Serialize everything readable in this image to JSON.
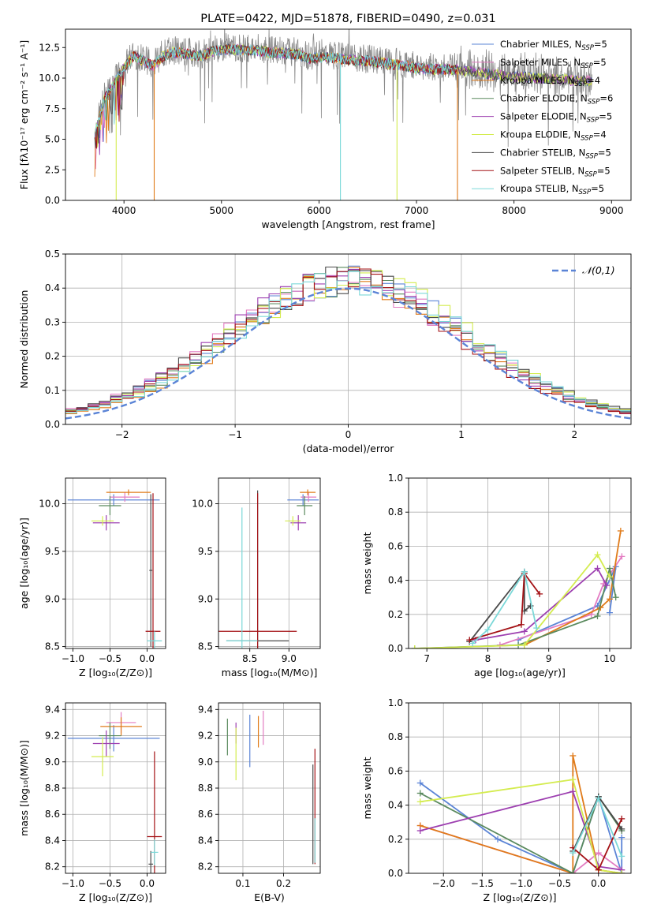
{
  "colors": {
    "chabrier_miles": "#5b84d6",
    "salpeter_miles": "#e37cc2",
    "kroupa_miles": "#e07b1a",
    "chabrier_elodie": "#5a8a5e",
    "salpeter_elodie": "#9d3fb0",
    "kroupa_elodie": "#d4ec4f",
    "chabrier_stelib": "#4a4a4a",
    "salpeter_stelib": "#a41216",
    "kroupa_stelib": "#7bd8d8",
    "grid": "#b0b0b0",
    "observed": "#8a8a8a"
  },
  "chart_data": [
    {
      "id": "spectrum",
      "type": "line",
      "title": "PLATE=0422, MJD=51878, FIBERID=0490, z=0.031",
      "xlabel": "wavelength [Angstrom, rest frame]",
      "ylabel": "Flux [fλ10⁻¹⁷ erg cm⁻² s⁻¹ A⁻¹]",
      "xlim": [
        3400,
        9200
      ],
      "ylim": [
        0,
        14
      ],
      "x_ticks": [
        "4000",
        "5000",
        "6000",
        "7000",
        "8000",
        "9000"
      ],
      "y_ticks": [
        "0.0",
        "2.5",
        "5.0",
        "7.5",
        "10.0",
        "12.5"
      ],
      "grid": false,
      "legend_position": "top-right",
      "legend": [
        {
          "name": "Chabrier MILES, NSSP=5",
          "base": "Chabrier MILES, N",
          "sub": "SSP",
          "tail": "=5",
          "color": "chabrier_miles"
        },
        {
          "name": "Salpeter MILES, NSSP=5",
          "base": "Salpeter MILES, N",
          "sub": "SSP",
          "tail": "=5",
          "color": "salpeter_miles"
        },
        {
          "name": "Kroupa MILES, NSSP=4",
          "base": "Kroupa MILES, N",
          "sub": "SSP",
          "tail": "=4",
          "color": "kroupa_miles"
        },
        {
          "name": "Chabrier ELODIE, NSSP=6",
          "base": "Chabrier ELODIE, N",
          "sub": "SSP",
          "tail": "=6",
          "color": "chabrier_elodie"
        },
        {
          "name": "Salpeter ELODIE, NSSP=5",
          "base": "Salpeter ELODIE, N",
          "sub": "SSP",
          "tail": "=5",
          "color": "salpeter_elodie"
        },
        {
          "name": "Kroupa ELODIE, NSSP=4",
          "base": "Kroupa ELODIE, N",
          "sub": "SSP",
          "tail": "=4",
          "color": "kroupa_elodie"
        },
        {
          "name": "Chabrier STELIB, NSSP=5",
          "base": "Chabrier STELIB, N",
          "sub": "SSP",
          "tail": "=5",
          "color": "chabrier_stelib"
        },
        {
          "name": "Salpeter STELIB, NSSP=5",
          "base": "Salpeter STELIB, N",
          "sub": "SSP",
          "tail": "=5",
          "color": "salpeter_stelib"
        },
        {
          "name": "Kroupa STELIB, NSSP=5",
          "base": "Kroupa STELIB, N",
          "sub": "SSP",
          "tail": "=5",
          "color": "kroupa_stelib"
        }
      ],
      "continuum": [
        [
          3700,
          5.5
        ],
        [
          3800,
          8.5
        ],
        [
          3900,
          9.8
        ],
        [
          4000,
          11.0
        ],
        [
          4100,
          12.0
        ],
        [
          4200,
          11.6
        ],
        [
          4300,
          11.2
        ],
        [
          4400,
          12.0
        ],
        [
          4500,
          12.3
        ],
        [
          4600,
          12.2
        ],
        [
          4700,
          12.1
        ],
        [
          4800,
          12.0
        ],
        [
          4900,
          12.4
        ],
        [
          5000,
          12.5
        ],
        [
          5100,
          12.6
        ],
        [
          5200,
          12.5
        ],
        [
          5300,
          12.5
        ],
        [
          5400,
          12.4
        ],
        [
          5500,
          12.3
        ],
        [
          5600,
          12.3
        ],
        [
          5700,
          12.2
        ],
        [
          5800,
          12.1
        ],
        [
          5900,
          11.8
        ],
        [
          6000,
          11.9
        ],
        [
          6100,
          11.9
        ],
        [
          6200,
          11.8
        ],
        [
          6300,
          11.7
        ],
        [
          6400,
          11.6
        ],
        [
          6500,
          11.6
        ],
        [
          6600,
          11.5
        ],
        [
          6700,
          11.4
        ],
        [
          6800,
          11.3
        ],
        [
          6900,
          11.2
        ],
        [
          7000,
          11.0
        ],
        [
          7100,
          11.0
        ],
        [
          7200,
          10.9
        ],
        [
          7300,
          10.9
        ],
        [
          7400,
          10.9
        ],
        [
          7500,
          10.8
        ],
        [
          7600,
          10.7
        ],
        [
          7700,
          10.6
        ],
        [
          7800,
          10.5
        ],
        [
          7900,
          10.4
        ],
        [
          8000,
          10.3
        ],
        [
          8100,
          10.3
        ],
        [
          8200,
          10.2
        ],
        [
          8300,
          10.2
        ],
        [
          8400,
          10.1
        ],
        [
          8500,
          10.1
        ],
        [
          8600,
          10.0
        ],
        [
          8700,
          10.0
        ],
        [
          8800,
          10.0
        ]
      ],
      "model_dropouts": [
        {
          "x": 3920,
          "color": "kroupa_elodie"
        },
        {
          "x": 4310,
          "color": "kroupa_miles"
        },
        {
          "x": 6220,
          "color": "kroupa_stelib"
        },
        {
          "x": 6800,
          "color": "kroupa_elodie"
        },
        {
          "x": 7420,
          "color": "kroupa_miles"
        }
      ]
    },
    {
      "id": "residuals",
      "type": "line",
      "xlabel": "(data-model)/error",
      "ylabel": "Normed distribution",
      "xlim": [
        -2.5,
        2.5
      ],
      "ylim": [
        0,
        0.5
      ],
      "x_ticks": [
        "−2",
        "−1",
        "0",
        "1",
        "2"
      ],
      "y_ticks": [
        "0.0",
        "0.1",
        "0.2",
        "0.3",
        "0.4",
        "0.5"
      ],
      "grid": true,
      "legend_position": "top-right",
      "series": [
        {
          "name": "𝒩(0,1)",
          "style": "dashed",
          "color": "chabrier_miles",
          "function": "normal",
          "mean": 0,
          "sigma": 1
        }
      ],
      "histogram": {
        "bin_edges": [
          -2.5,
          2.5
        ],
        "bin_count": 50,
        "base_sigma": 1.05,
        "base_peak": 0.41
      }
    },
    {
      "id": "age_vs_metallicity",
      "type": "scatter",
      "xlabel": "Z [log₁₀(Z/Z⊙)]",
      "ylabel": "age  [log₁₀(age/yr)]",
      "xlim": [
        -1.1,
        0.25
      ],
      "ylim": [
        8.48,
        10.27
      ],
      "x_ticks": [
        "−1.0",
        "−0.5",
        "0.0"
      ],
      "y_ticks": [
        "8.5",
        "9.0",
        "9.5",
        "10.0"
      ],
      "grid": true,
      "points": [
        {
          "color": "chabrier_miles",
          "x": -0.45,
          "xerr": 0.62,
          "y": 10.04,
          "yerr": 0.06
        },
        {
          "color": "salpeter_miles",
          "x": -0.3,
          "xerr": 0.2,
          "y": 10.07,
          "yerr": 0.05
        },
        {
          "color": "kroupa_miles",
          "x": -0.25,
          "xerr": 0.3,
          "y": 10.12,
          "yerr": 0.03
        },
        {
          "color": "chabrier_elodie",
          "x": -0.5,
          "xerr": 0.15,
          "y": 9.98,
          "yerr": 0.1
        },
        {
          "color": "salpeter_elodie",
          "x": -0.55,
          "xerr": 0.18,
          "y": 9.8,
          "yerr": 0.08
        },
        {
          "color": "kroupa_elodie",
          "x": -0.6,
          "xerr": 0.15,
          "y": 9.82,
          "yerr": 0.05
        },
        {
          "color": "chabrier_stelib",
          "x": 0.05,
          "xerr": 0.02,
          "y": 9.3,
          "yerr": 0.8
        },
        {
          "color": "salpeter_stelib",
          "x": 0.08,
          "xerr": 0.1,
          "y": 8.66,
          "yerr": 1.45
        },
        {
          "color": "kroupa_stelib",
          "x": 0.1,
          "xerr": 0.1,
          "y": 8.56,
          "yerr": 0.1
        }
      ]
    },
    {
      "id": "age_vs_mass",
      "type": "scatter",
      "xlabel": "mass [log₁₀(M/M⊙)]",
      "xlim": [
        8.1,
        9.4
      ],
      "ylim": [
        8.48,
        10.27
      ],
      "x_ticks": [
        "8.5",
        "9.0"
      ],
      "y_ticks": [
        "8.5",
        "9.0",
        "9.5",
        "10.0"
      ],
      "grid": true,
      "points": [
        {
          "color": "chabrier_miles",
          "x": 9.18,
          "xerr": 0.2,
          "y": 10.04,
          "yerr": 0.06
        },
        {
          "color": "salpeter_miles",
          "x": 9.25,
          "xerr": 0.1,
          "y": 10.07,
          "yerr": 0.05
        },
        {
          "color": "kroupa_miles",
          "x": 9.24,
          "xerr": 0.1,
          "y": 10.12,
          "yerr": 0.03
        },
        {
          "color": "chabrier_elodie",
          "x": 9.2,
          "xerr": 0.1,
          "y": 9.98,
          "yerr": 0.1
        },
        {
          "color": "salpeter_elodie",
          "x": 9.12,
          "xerr": 0.1,
          "y": 9.8,
          "yerr": 0.08
        },
        {
          "color": "kroupa_elodie",
          "x": 9.05,
          "xerr": 0.1,
          "y": 9.82,
          "yerr": 0.05
        },
        {
          "color": "chabrier_stelib",
          "x": 8.6,
          "xerr": 0.4,
          "y": 8.56,
          "yerr": 1.58
        },
        {
          "color": "salpeter_stelib",
          "x": 8.6,
          "xerr": 0.5,
          "y": 8.66,
          "yerr": 1.45
        },
        {
          "color": "kroupa_stelib",
          "x": 8.4,
          "xerr": 0.2,
          "y": 8.56,
          "yerr": 1.4
        }
      ]
    },
    {
      "id": "mass_weight_vs_age",
      "type": "line",
      "xlabel": "age  [log₁₀(age/yr)]",
      "ylabel": "mass weight",
      "xlim": [
        6.7,
        10.35
      ],
      "ylim": [
        0,
        1
      ],
      "x_ticks": [
        "7",
        "8",
        "9",
        "10"
      ],
      "y_ticks": [
        "0.0",
        "0.2",
        "0.4",
        "0.6",
        "0.8",
        "1.0"
      ],
      "grid": true,
      "series": [
        {
          "color": "chabrier_miles",
          "x": [
            8.5,
            9.8,
            10.1,
            10.0
          ],
          "y": [
            0.05,
            0.25,
            0.48,
            0.21
          ]
        },
        {
          "color": "salpeter_miles",
          "x": [
            8.2,
            9.7,
            9.9,
            10.2
          ],
          "y": [
            0.02,
            0.2,
            0.38,
            0.54
          ]
        },
        {
          "color": "kroupa_miles",
          "x": [
            8.6,
            9.85,
            10.0,
            10.18
          ],
          "y": [
            0.02,
            0.24,
            0.29,
            0.69
          ]
        },
        {
          "color": "chabrier_elodie",
          "x": [
            6.8,
            8.5,
            9.8,
            10.0,
            10.1
          ],
          "y": [
            0.0,
            0.02,
            0.19,
            0.47,
            0.3
          ]
        },
        {
          "color": "salpeter_elodie",
          "x": [
            7.8,
            8.6,
            9.8,
            9.95
          ],
          "y": [
            0.05,
            0.1,
            0.47,
            0.37
          ]
        },
        {
          "color": "kroupa_elodie",
          "x": [
            6.8,
            8.6,
            9.8,
            10.0
          ],
          "y": [
            0.0,
            0.02,
            0.55,
            0.42
          ]
        },
        {
          "color": "chabrier_stelib",
          "x": [
            7.7,
            8.6,
            8.6,
            8.7
          ],
          "y": [
            0.04,
            0.45,
            0.22,
            0.25
          ]
        },
        {
          "color": "salpeter_stelib",
          "x": [
            7.7,
            8.55,
            8.6,
            8.85
          ],
          "y": [
            0.05,
            0.14,
            0.44,
            0.32
          ]
        },
        {
          "color": "kroupa_stelib",
          "x": [
            7.75,
            8.0,
            8.6,
            8.8
          ],
          "y": [
            0.03,
            0.11,
            0.45,
            0.12
          ]
        }
      ]
    },
    {
      "id": "mass_vs_metallicity",
      "type": "scatter",
      "xlabel": "Z [log₁₀(Z/Z⊙)]",
      "ylabel": "mass [log₁₀(M/M⊙)]",
      "xlim": [
        -1.1,
        0.25
      ],
      "ylim": [
        8.15,
        9.45
      ],
      "x_ticks": [
        "−1.0",
        "−0.5",
        "0.0"
      ],
      "y_ticks": [
        "8.2",
        "8.4",
        "8.6",
        "8.8",
        "9.0",
        "9.2",
        "9.4"
      ],
      "grid": true,
      "points": [
        {
          "color": "chabrier_miles",
          "x": -0.45,
          "xerr": 0.62,
          "y": 9.18,
          "yerr": 0.1
        },
        {
          "color": "salpeter_miles",
          "x": -0.35,
          "xerr": 0.2,
          "y": 9.3,
          "yerr": 0.08
        },
        {
          "color": "kroupa_miles",
          "x": -0.35,
          "xerr": 0.28,
          "y": 9.27,
          "yerr": 0.07
        },
        {
          "color": "chabrier_elodie",
          "x": -0.5,
          "xerr": 0.15,
          "y": 9.2,
          "yerr": 0.1
        },
        {
          "color": "salpeter_elodie",
          "x": -0.55,
          "xerr": 0.18,
          "y": 9.14,
          "yerr": 0.1
        },
        {
          "color": "kroupa_elodie",
          "x": -0.6,
          "xerr": 0.15,
          "y": 9.04,
          "yerr": 0.15
        },
        {
          "color": "chabrier_stelib",
          "x": 0.05,
          "xerr": 0.03,
          "y": 8.22,
          "yerr": 0.1
        },
        {
          "color": "salpeter_stelib",
          "x": 0.1,
          "xerr": 0.1,
          "y": 8.43,
          "yerr": 0.65
        },
        {
          "color": "kroupa_stelib",
          "x": 0.1,
          "xerr": 0.05,
          "y": 8.31,
          "yerr": 0.1
        }
      ]
    },
    {
      "id": "mass_vs_extinction",
      "type": "scatter",
      "xlabel": "E(B-V)",
      "xlim": [
        0.04,
        0.29
      ],
      "ylim": [
        8.15,
        9.45
      ],
      "x_ticks": [
        "0.1",
        "0.2"
      ],
      "y_ticks": [
        "8.2",
        "8.4",
        "8.6",
        "8.8",
        "9.0",
        "9.2",
        "9.4"
      ],
      "grid": true,
      "points": [
        {
          "color": "chabrier_elodie",
          "x": 0.062,
          "y": 9.19,
          "yerr": 0.14
        },
        {
          "color": "salpeter_elodie",
          "x": 0.083,
          "y": 9.22,
          "yerr": 0.08
        },
        {
          "color": "kroupa_elodie",
          "x": 0.083,
          "y": 9.06,
          "yerr": 0.2
        },
        {
          "color": "chabrier_miles",
          "x": 0.117,
          "y": 9.16,
          "yerr": 0.2
        },
        {
          "color": "kroupa_miles",
          "x": 0.138,
          "y": 9.23,
          "yerr": 0.12
        },
        {
          "color": "salpeter_miles",
          "x": 0.15,
          "y": 9.26,
          "yerr": 0.13
        },
        {
          "color": "chabrier_stelib",
          "x": 0.272,
          "y": 8.6,
          "yerr": 0.38
        },
        {
          "color": "salpeter_stelib",
          "x": 0.277,
          "y": 8.66,
          "yerr": 0.44
        },
        {
          "color": "kroupa_stelib",
          "x": 0.277,
          "y": 8.4,
          "yerr": 0.17
        }
      ]
    },
    {
      "id": "mass_weight_vs_metallicity",
      "type": "line",
      "xlabel": "Z [log₁₀(Z/Z⊙)]",
      "ylabel": "mass weight",
      "xlim": [
        -2.45,
        0.42
      ],
      "ylim": [
        0,
        1
      ],
      "x_ticks": [
        "−2.0",
        "−1.5",
        "−1.0",
        "−0.5",
        "0.0"
      ],
      "y_ticks": [
        "0.0",
        "0.2",
        "0.4",
        "0.6",
        "0.8",
        "1.0"
      ],
      "grid": true,
      "series": [
        {
          "color": "chabrier_miles",
          "x": [
            -2.3,
            -1.3,
            -0.33,
            0.0,
            0.3,
            0.3
          ],
          "y": [
            0.53,
            0.2,
            0.0,
            0.45,
            0.0,
            0.21
          ]
        },
        {
          "color": "salpeter_miles",
          "x": [
            -2.3,
            -0.33,
            0.0,
            0.3
          ],
          "y": [
            0.28,
            0.0,
            0.12,
            0.02
          ]
        },
        {
          "color": "kroupa_miles",
          "x": [
            -2.3,
            -0.33,
            -0.33,
            0.0,
            0.3
          ],
          "y": [
            0.28,
            0.0,
            0.69,
            0.02,
            0.0
          ]
        },
        {
          "color": "chabrier_elodie",
          "x": [
            -2.3,
            -0.33,
            0.0,
            0.3
          ],
          "y": [
            0.47,
            0.0,
            0.45,
            0.25
          ]
        },
        {
          "color": "salpeter_elodie",
          "x": [
            -2.3,
            -0.33,
            0.0,
            0.3
          ],
          "y": [
            0.25,
            0.48,
            0.04,
            0.02
          ]
        },
        {
          "color": "kroupa_elodie",
          "x": [
            -2.3,
            -0.33,
            0.0,
            0.3
          ],
          "y": [
            0.42,
            0.55,
            0.02,
            0.0
          ]
        },
        {
          "color": "chabrier_stelib",
          "x": [
            -0.33,
            0.0,
            0.3
          ],
          "y": [
            0.13,
            0.45,
            0.26
          ]
        },
        {
          "color": "salpeter_stelib",
          "x": [
            -0.33,
            0.0,
            0.3
          ],
          "y": [
            0.15,
            0.02,
            0.32
          ]
        },
        {
          "color": "kroupa_stelib",
          "x": [
            -0.33,
            0.0,
            0.3
          ],
          "y": [
            0.12,
            0.44,
            0.1
          ]
        }
      ]
    }
  ]
}
